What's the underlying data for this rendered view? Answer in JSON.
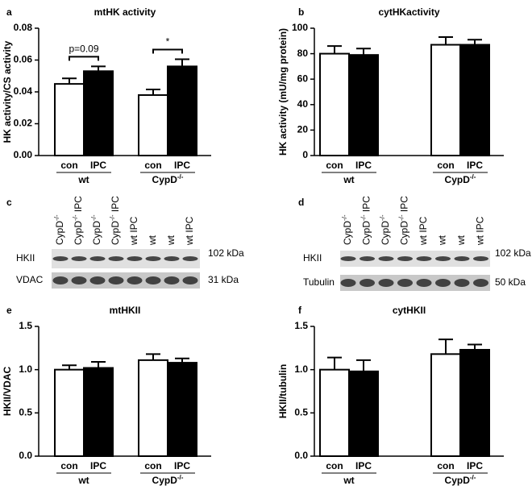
{
  "chart_data": [
    {
      "type": "bar",
      "panel": "a",
      "title": "mtHK activity",
      "y_label": "HK activity/CS activity",
      "groups": [
        {
          "text": "wt"
        },
        {
          "text": "CypD",
          "sup": "-/-"
        }
      ],
      "series": [
        {
          "name": "con",
          "color": "#ffffff",
          "values": [
            0.045,
            0.038
          ],
          "errors": [
            0.0035,
            0.0035
          ]
        },
        {
          "name": "IPC",
          "color": "#000000",
          "values": [
            0.053,
            0.056
          ],
          "errors": [
            0.003,
            0.0045
          ]
        }
      ],
      "ylim": [
        0,
        0.08
      ],
      "yticks": [
        {
          "value": 0,
          "label": "0.00"
        },
        {
          "value": 0.02,
          "label": "0.02"
        },
        {
          "value": 0.04,
          "label": "0.04"
        },
        {
          "value": 0.06,
          "label": "0.06"
        },
        {
          "value": 0.08,
          "label": "0.08"
        }
      ],
      "annotations": [
        "p=0.09",
        "*"
      ]
    },
    {
      "type": "bar",
      "panel": "b",
      "title": "cytHKactivity",
      "y_label": "HK activity (mU/mg protein)",
      "groups": [
        {
          "text": "wt"
        },
        {
          "text": "CypD",
          "sup": "-/-"
        }
      ],
      "series": [
        {
          "name": "con",
          "color": "#ffffff",
          "values": [
            80,
            87
          ],
          "errors": [
            6,
            6
          ]
        },
        {
          "name": "IPC",
          "color": "#000000",
          "values": [
            79,
            87
          ],
          "errors": [
            5,
            4
          ]
        }
      ],
      "ylim": [
        0,
        100
      ],
      "yticks": [
        0,
        20,
        40,
        60,
        80,
        100
      ]
    },
    {
      "type": "bar",
      "panel": "e",
      "title": "mtHKII",
      "y_label": "HKII/VDAC",
      "groups": [
        {
          "text": "wt"
        },
        {
          "text": "CypD",
          "sup": "-/-"
        }
      ],
      "series": [
        {
          "name": "con",
          "color": "#ffffff",
          "values": [
            1.0,
            1.11
          ],
          "errors": [
            0.05,
            0.07
          ]
        },
        {
          "name": "IPC",
          "color": "#000000",
          "values": [
            1.02,
            1.08
          ],
          "errors": [
            0.07,
            0.05
          ]
        }
      ],
      "ylim": [
        0,
        1.5
      ],
      "yticks": [
        {
          "value": 0,
          "label": "0.0"
        },
        {
          "value": 0.5,
          "label": "0.5"
        },
        {
          "value": 1,
          "label": "1.0"
        },
        1.5
      ]
    },
    {
      "type": "bar",
      "panel": "f",
      "title": "cytHKII",
      "y_label": "HKII/tubulin",
      "groups": [
        {
          "text": "wt"
        },
        {
          "text": "CypD",
          "sup": "-/-"
        }
      ],
      "series": [
        {
          "name": "con",
          "color": "#ffffff",
          "values": [
            1.0,
            1.18
          ],
          "errors": [
            0.14,
            0.17
          ]
        },
        {
          "name": "IPC",
          "color": "#000000",
          "values": [
            0.98,
            1.23
          ],
          "errors": [
            0.13,
            0.06
          ]
        }
      ],
      "ylim": [
        0,
        1.5
      ],
      "yticks": [
        {
          "value": 0,
          "label": "0.0"
        },
        {
          "value": 0.5,
          "label": "0.5"
        },
        {
          "value": 1,
          "label": "1.0"
        },
        1.5
      ]
    }
  ],
  "blots": [
    {
      "panel": "c",
      "lanes": [
        {
          "text": "CypD",
          "sup": "-/-"
        },
        {
          "text": "CypD",
          "sup": "-/-",
          "after": " IPC"
        },
        {
          "text": "CypD",
          "sup": "-/-"
        },
        {
          "text": "CypD",
          "sup": "-/-",
          "after": " IPC"
        },
        {
          "text": "wt IPC"
        },
        {
          "text": "wt"
        },
        {
          "text": "wt"
        },
        {
          "text": "wt IPC"
        }
      ],
      "rows": [
        {
          "label": "HKII",
          "size": "102 kDa"
        },
        {
          "label": "VDAC",
          "size": "31 kDa"
        }
      ]
    },
    {
      "panel": "d",
      "lanes": [
        {
          "text": "CypD",
          "sup": "-/-"
        },
        {
          "text": "CypD",
          "sup": "-/-",
          "after": " IPC"
        },
        {
          "text": "CypD",
          "sup": "-/-"
        },
        {
          "text": "CypD",
          "sup": "-/-",
          "after": " IPC"
        },
        {
          "text": "wt IPC"
        },
        {
          "text": "wt"
        },
        {
          "text": "wt"
        },
        {
          "text": "wt IPC"
        }
      ],
      "rows": [
        {
          "label": "HKII",
          "size": "102 kDa"
        },
        {
          "label": "Tubulin",
          "size": "50 kDa"
        }
      ]
    }
  ]
}
